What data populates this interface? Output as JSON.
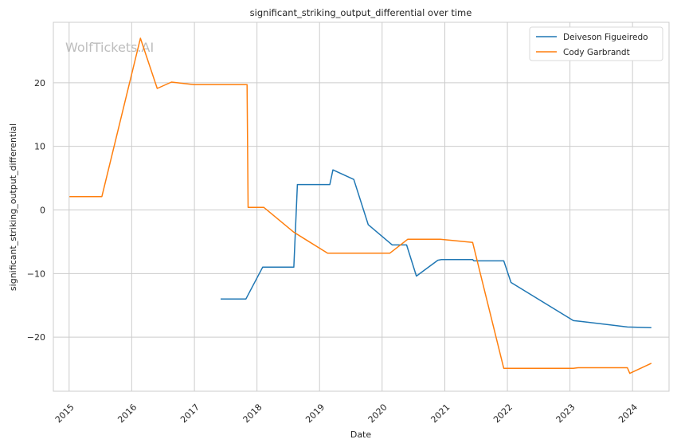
{
  "chart_data": {
    "type": "line",
    "title": "significant_striking_output_differential over time",
    "xlabel": "Date",
    "ylabel": "significant_striking_output_differential",
    "watermark": "WolfTickets.AI",
    "x_ticks": [
      "2015",
      "2016",
      "2017",
      "2018",
      "2019",
      "2020",
      "2021",
      "2022",
      "2023",
      "2024"
    ],
    "y_ticks": [
      -20,
      -10,
      0,
      10,
      20
    ],
    "y_tick_labels": [
      "−20",
      "−10",
      "0",
      "10",
      "20"
    ],
    "xlim": [
      "2014-10-01",
      "2024-08-01"
    ],
    "ylim": [
      -28.5,
      29.5
    ],
    "grid": true,
    "legend_position": "top-right",
    "series": [
      {
        "name": "Deiveson Figueiredo",
        "color": "#1f77b4",
        "points": [
          [
            "2017-06-03",
            -14.0
          ],
          [
            "2017-10-28",
            -14.0
          ],
          [
            "2018-02-03",
            -9.0
          ],
          [
            "2018-08-04",
            -9.0
          ],
          [
            "2018-08-25",
            4.0
          ],
          [
            "2019-03-02",
            4.0
          ],
          [
            "2019-03-20",
            6.3
          ],
          [
            "2019-07-20",
            4.8
          ],
          [
            "2019-10-12",
            -2.3
          ],
          [
            "2020-02-29",
            -5.5
          ],
          [
            "2020-05-23",
            -5.5
          ],
          [
            "2020-07-19",
            -10.4
          ],
          [
            "2020-11-21",
            -7.9
          ],
          [
            "2020-12-12",
            -7.8
          ],
          [
            "2021-06-12",
            -7.8
          ],
          [
            "2021-06-20",
            -8.0
          ],
          [
            "2021-12-11",
            -8.0
          ],
          [
            "2022-01-22",
            -11.4
          ],
          [
            "2023-01-21",
            -17.4
          ],
          [
            "2023-03-01",
            -17.5
          ],
          [
            "2023-12-02",
            -18.4
          ],
          [
            "2024-04-20",
            -18.5
          ]
        ]
      },
      {
        "name": "Cody Garbrandt",
        "color": "#ff7f0e",
        "points": [
          [
            "2015-01-03",
            2.1
          ],
          [
            "2015-07-11",
            2.1
          ],
          [
            "2016-02-21",
            27.0
          ],
          [
            "2016-05-29",
            19.1
          ],
          [
            "2016-08-20",
            20.1
          ],
          [
            "2016-12-30",
            19.7
          ],
          [
            "2017-11-04",
            19.7
          ],
          [
            "2017-11-10",
            0.4
          ],
          [
            "2018-02-10",
            0.4
          ],
          [
            "2018-08-04",
            -3.5
          ],
          [
            "2019-02-17",
            -6.8
          ],
          [
            "2020-02-15",
            -6.8
          ],
          [
            "2020-05-30",
            -4.6
          ],
          [
            "2020-12-05",
            -4.6
          ],
          [
            "2021-06-12",
            -5.1
          ],
          [
            "2021-12-11",
            -24.9
          ],
          [
            "2023-01-21",
            -24.9
          ],
          [
            "2023-02-18",
            -24.8
          ],
          [
            "2023-12-02",
            -24.8
          ],
          [
            "2023-12-16",
            -25.7
          ],
          [
            "2024-04-20",
            -24.1
          ]
        ]
      }
    ]
  }
}
